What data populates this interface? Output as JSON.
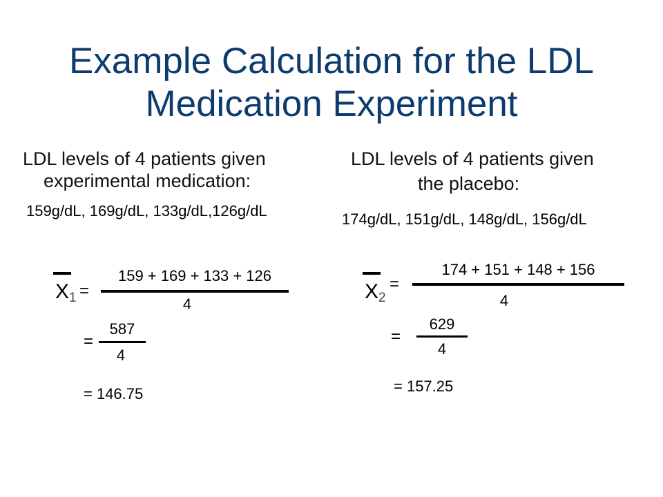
{
  "title": "Example Calculation for the LDL Medication Experiment",
  "left": {
    "heading_line1": "LDL levels of 4 patients given",
    "heading_line2": "experimental medication:",
    "values": "159g/dL, 169g/dL, 133g/dL,126g/dL",
    "symbol": "X",
    "subscript": "1",
    "equals": "=",
    "numerator": "159 + 169 + 133 + 126",
    "denominator": "4",
    "step_equals": "=",
    "step_numerator": "587",
    "step_denominator": "4",
    "result": "= 146.75"
  },
  "right": {
    "heading_line1": "LDL levels of 4 patients given",
    "heading_line2": "the placebo:",
    "values": "174g/dL, 151g/dL, 148g/dL, 156g/dL",
    "symbol": "X",
    "subscript": "2",
    "equals": "=",
    "numerator": "174 + 151 + 148 + 156",
    "denominator": "4",
    "step_equals": "=",
    "step_numerator": "629",
    "step_denominator": "4",
    "result": "= 157.25"
  }
}
